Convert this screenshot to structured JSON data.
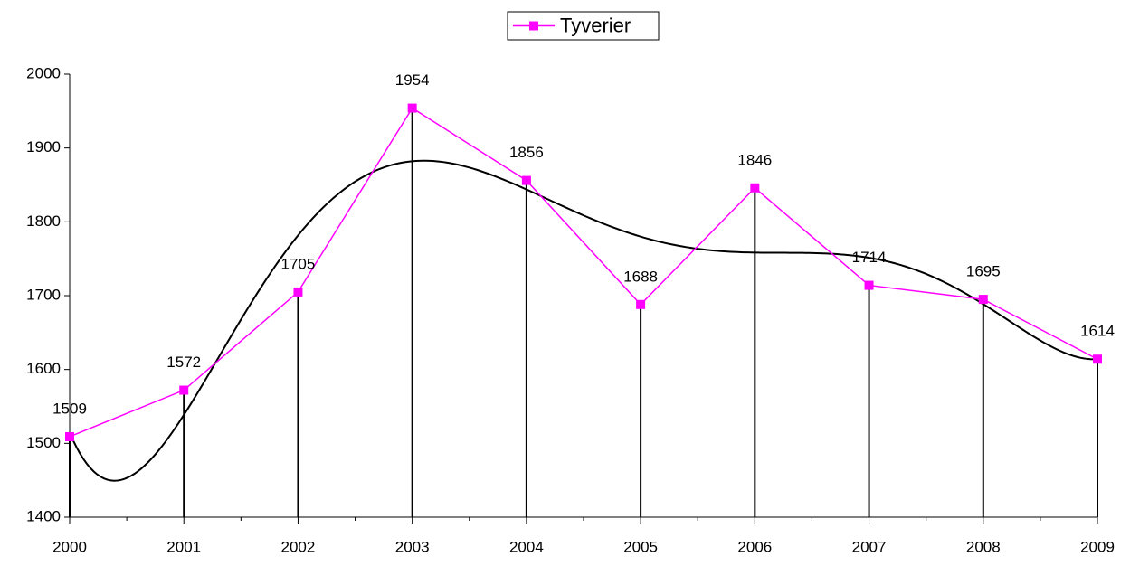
{
  "chart_data": {
    "type": "line",
    "x": [
      2000,
      2001,
      2002,
      2003,
      2004,
      2005,
      2006,
      2007,
      2008,
      2009
    ],
    "xlim": [
      2000,
      2009
    ],
    "xticks": [
      2000,
      2001,
      2002,
      2003,
      2004,
      2005,
      2006,
      2007,
      2008,
      2009
    ],
    "ylim": [
      1400,
      2000
    ],
    "yticks": [
      1400,
      1500,
      1600,
      1700,
      1800,
      1900,
      2000
    ],
    "series": [
      {
        "name": "Tyverier",
        "color": "#ff00ff",
        "values": [
          1509,
          1572,
          1705,
          1954,
          1856,
          1688,
          1846,
          1714,
          1695,
          1614
        ]
      }
    ],
    "drop_lines": true,
    "trendline": {
      "order": 6,
      "color": "#000000"
    },
    "legend": "top"
  }
}
